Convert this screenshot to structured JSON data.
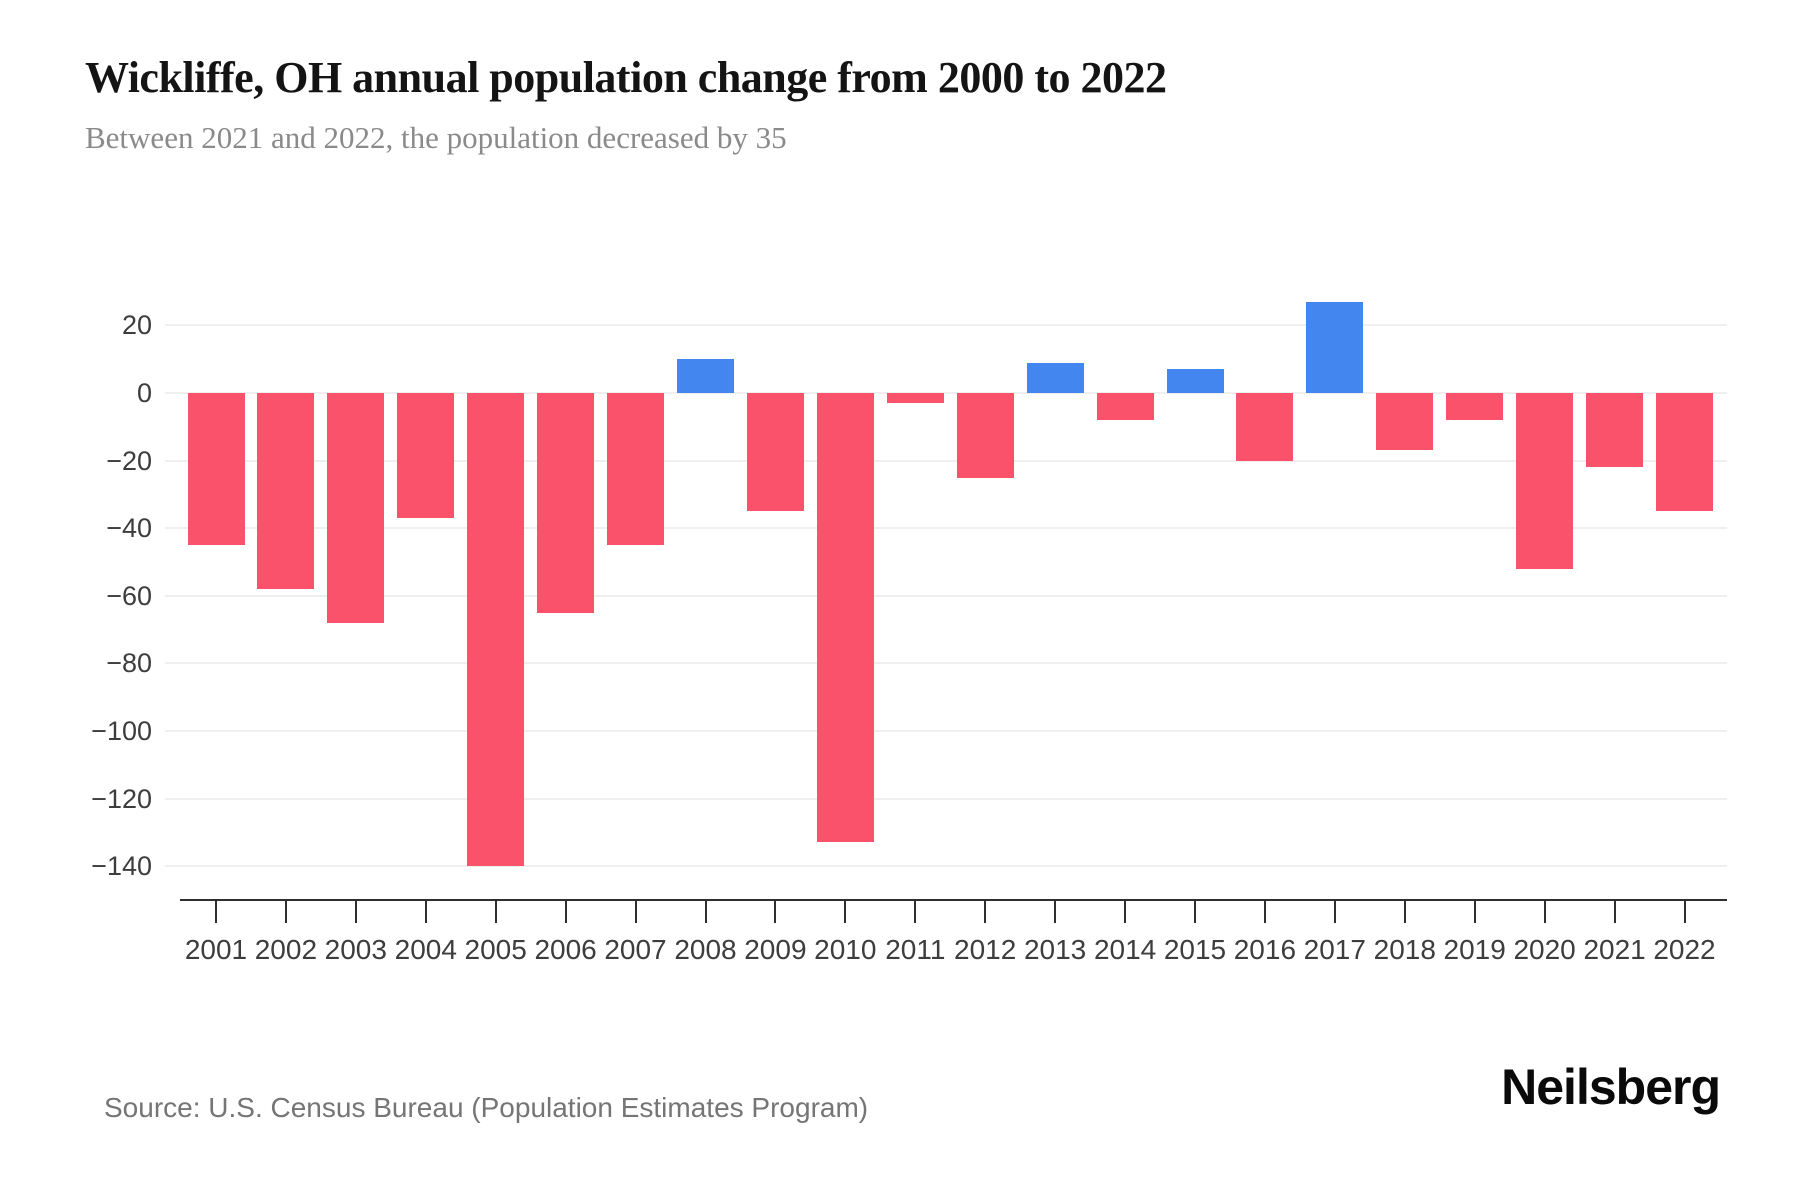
{
  "page": {
    "title": "Wickliffe, OH annual population change from 2000 to 2022",
    "subtitle": "Between 2021 and 2022, the population decreased by 35",
    "source": "Source: U.S. Census Bureau (Population Estimates Program)",
    "brand": "Neilsberg"
  },
  "colors": {
    "decrease_bar": "#fb526b",
    "increase_bar": "#4486ef",
    "gridline": "#efefef",
    "axis": "#2f2f2f",
    "tick_label": "#3d3d3d",
    "title": "#141414",
    "subtitle": "#8a8a8a",
    "source": "#757575",
    "background": "#ffffff"
  },
  "chart_data": {
    "type": "bar",
    "title": "Wickliffe, OH annual population change from 2000 to 2022",
    "subtitle": "Between 2021 and 2022, the population decreased by 35",
    "categories": [
      "2001",
      "2002",
      "2003",
      "2004",
      "2005",
      "2006",
      "2007",
      "2008",
      "2009",
      "2010",
      "2011",
      "2012",
      "2013",
      "2014",
      "2015",
      "2016",
      "2017",
      "2018",
      "2019",
      "2020",
      "2021",
      "2022"
    ],
    "values": [
      -45,
      -58,
      -68,
      -37,
      -140,
      -65,
      -45,
      10,
      -35,
      -133,
      -3,
      -25,
      9,
      -8,
      7,
      -20,
      27,
      -17,
      -8,
      -52,
      -22,
      -35
    ],
    "xlabel": "",
    "ylabel": "",
    "ylim": [
      -150,
      41
    ],
    "yticks": [
      20,
      0,
      -20,
      -40,
      -60,
      -80,
      -100,
      -120,
      -140
    ],
    "grid": "horizontal",
    "legend": "none",
    "color_rule": "negative values red, positive values blue"
  }
}
